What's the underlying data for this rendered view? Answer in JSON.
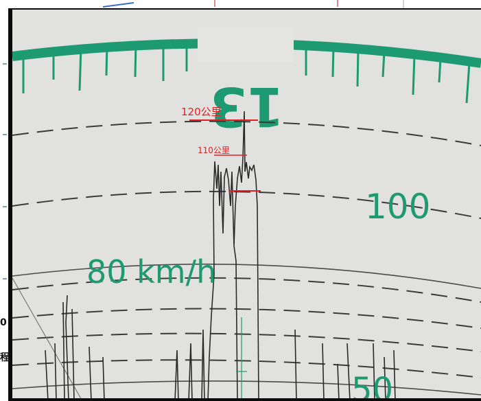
{
  "image": {
    "description_free": true,
    "dial_number": "13",
    "speed_scale_labels": {
      "primary": "80 km/h",
      "secondary": "100",
      "lower": "50"
    },
    "annotations": [
      {
        "text": "120公里",
        "color": "#e02020"
      },
      {
        "text": "110公里",
        "color": "#e02020"
      }
    ],
    "side_text": [
      "0",
      "程"
    ],
    "colors": {
      "dial_paper": "#e4e4e2",
      "print_green": "#1e9a73",
      "trace_black": "#2a2a2a",
      "annotation_red": "#e02020",
      "frame_black": "#0b0b0b"
    }
  }
}
